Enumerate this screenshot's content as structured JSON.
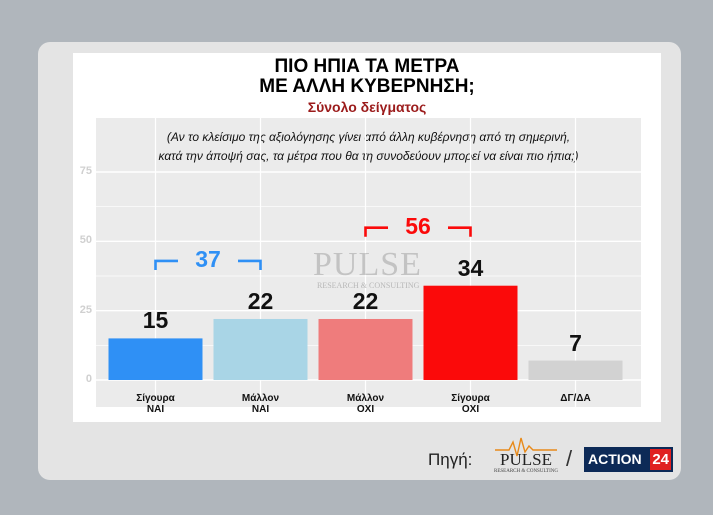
{
  "header": {
    "title_line1": "ΠΙΟ ΗΠΙΑ ΤΑ ΜΕΤΡΑ",
    "title_line2": "ΜΕ ΑΛΛΗ ΚΥΒΕΡΝΗΣΗ;",
    "subtitle": "Σύνολο δείγματος"
  },
  "question": {
    "line1": "(Αν το κλείσιμο της αξιολόγησης γίνει από άλλη κυβέρνηση από τη σημερινή,",
    "line2": "κατά την άποψή σας, τα μέτρα που θα τη συνοδεύουν μπορεί να είναι πιο ήπια;)"
  },
  "watermark": {
    "text": "PULSE",
    "sub": "RESEARCH & CONSULTING"
  },
  "footer": {
    "source_label": "Πηγή:",
    "pulse_logo": "PULSE",
    "pulse_logo_sub": "RESEARCH & CONSULTING",
    "slash": "/",
    "action_logo": "ACTION",
    "action_logo_num": "24"
  },
  "chart_data": {
    "type": "bar",
    "categories": [
      [
        "Σίγουρα",
        "ΝΑΙ"
      ],
      [
        "Μάλλον",
        "ΝΑΙ"
      ],
      [
        "Μάλλον",
        "ΟΧΙ"
      ],
      [
        "Σίγουρα",
        "ΟΧΙ"
      ],
      [
        "ΔΓ/ΔΑ"
      ]
    ],
    "values": [
      15,
      22,
      22,
      34,
      7
    ],
    "colors": [
      "#2f90f5",
      "#a9d5e6",
      "#ef7c7c",
      "#fb0a0a",
      "#d2d2d2"
    ],
    "ylim": [
      0,
      75
    ],
    "yticks": [
      0,
      25,
      50,
      75
    ],
    "grid": true,
    "groups": [
      {
        "label": "37",
        "from": 0,
        "to": 1,
        "color": "#2f90f5"
      },
      {
        "label": "56",
        "from": 2,
        "to": 3,
        "color": "#fb0a0a"
      }
    ]
  }
}
